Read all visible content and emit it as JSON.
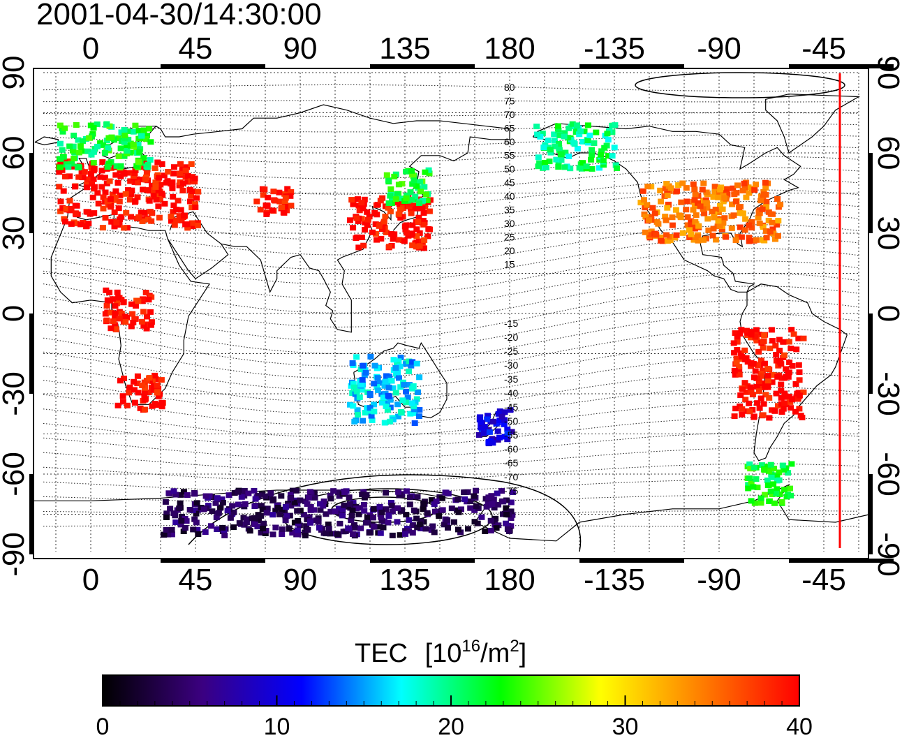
{
  "title": "2001-04-30/14:30:00",
  "colorbar": {
    "title": "TEC",
    "unit_base": "[10",
    "unit_exp": "16",
    "unit_mid": "/m",
    "unit_exp2": "2",
    "unit_close": "]",
    "min": 0,
    "max": 40,
    "tick_labels": [
      "0",
      "10",
      "20",
      "30",
      "40"
    ],
    "colors": [
      "#000000",
      "#3b0080",
      "#0000ff",
      "#00ffff",
      "#00ff00",
      "#ffff00",
      "#ff8000",
      "#ff0000"
    ]
  },
  "map": {
    "lon_tick_labels": [
      "0",
      "45",
      "90",
      "135",
      "180",
      "-135",
      "-90",
      "-45"
    ],
    "lat_tick_labels": [
      "90",
      "60",
      "30",
      "0",
      "-30",
      "-60",
      "-90"
    ],
    "terminator_color": "#ff0000",
    "contour_labels_north": [
      "80",
      "75",
      "70",
      "65",
      "60",
      "55",
      "50",
      "45",
      "40",
      "35",
      "30",
      "25",
      "20",
      "15"
    ],
    "contour_labels_south": [
      "-15",
      "-20",
      "-25",
      "-30",
      "-35",
      "-40",
      "-45",
      "-50",
      "-55",
      "-60",
      "-65",
      "-70",
      "-75"
    ]
  },
  "chart_data": {
    "type": "heatmap",
    "title": "2001-04-30/14:30:00",
    "xlabel": "",
    "ylabel": "",
    "colorbar_label": "TEC [10^16/m^2]",
    "xlim_deg_east": [
      -25,
      335
    ],
    "ylim": [
      -90,
      90
    ],
    "clim": [
      0,
      40
    ],
    "grid": true,
    "regions": [
      {
        "lon": [
          -15,
          45
        ],
        "lat": [
          33,
          58
        ],
        "tec": 40
      },
      {
        "lon": [
          -15,
          25
        ],
        "lat": [
          55,
          72
        ],
        "tec": 22
      },
      {
        "lon": [
          10,
          30
        ],
        "lat": [
          -35,
          -22
        ],
        "tec": 40
      },
      {
        "lon": [
          5,
          25
        ],
        "lat": [
          -5,
          10
        ],
        "tec": 40
      },
      {
        "lon": [
          70,
          85
        ],
        "lat": [
          38,
          48
        ],
        "tec": 40
      },
      {
        "lon": [
          110,
          145
        ],
        "lat": [
          25,
          45
        ],
        "tec": 40
      },
      {
        "lon": [
          125,
          145
        ],
        "lat": [
          42,
          55
        ],
        "tec": 22
      },
      {
        "lon": [
          110,
          140
        ],
        "lat": [
          -40,
          -15
        ],
        "tec": 16
      },
      {
        "lon": [
          165,
          180
        ],
        "lat": [
          -48,
          -35
        ],
        "tec": 10
      },
      {
        "lon": [
          190,
          225
        ],
        "lat": [
          55,
          72
        ],
        "tec": 20
      },
      {
        "lon": [
          235,
          295
        ],
        "lat": [
          28,
          50
        ],
        "tec": 35
      },
      {
        "lon": [
          275,
          305
        ],
        "lat": [
          -38,
          -5
        ],
        "tec": 40
      },
      {
        "lon": [
          280,
          300
        ],
        "lat": [
          -70,
          -55
        ],
        "tec": 22
      },
      {
        "lon": [
          30,
          180
        ],
        "lat": [
          -82,
          -65
        ],
        "tec": 4
      }
    ]
  }
}
